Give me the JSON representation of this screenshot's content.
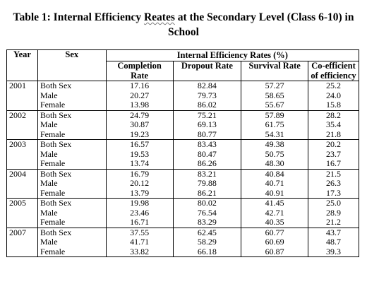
{
  "title": {
    "line1_pre": "Table 1: Internal Efficiency ",
    "line1_squiggle": "Reates",
    "line1_post": " at the Secondary Level (Class 6-10) in",
    "line2": "School"
  },
  "headers": {
    "year": "Year",
    "sex": "Sex",
    "group": "Internal Efficiency Rates (%)",
    "completion": "Completion Rate",
    "dropout": "Dropout Rate",
    "survival": "Survival Rate",
    "coefficient": "Co-efficient of efficiency"
  },
  "rows": [
    {
      "year": "2001",
      "entries": [
        {
          "sex": "Both Sex",
          "completion": "17.16",
          "dropout": "82.84",
          "survival": "57.27",
          "coefficient": "25.2"
        },
        {
          "sex": "Male",
          "completion": "20.27",
          "dropout": "79.73",
          "survival": "58.65",
          "coefficient": "24.0"
        },
        {
          "sex": "Female",
          "completion": "13.98",
          "dropout": "86.02",
          "survival": "55.67",
          "coefficient": "15.8"
        }
      ]
    },
    {
      "year": "2002",
      "entries": [
        {
          "sex": "Both Sex",
          "completion": "24.79",
          "dropout": "75.21",
          "survival": "57.89",
          "coefficient": "28.2"
        },
        {
          "sex": "Male",
          "completion": "30.87",
          "dropout": "69.13",
          "survival": "61.75",
          "coefficient": "35.4"
        },
        {
          "sex": "Female",
          "completion": "19.23",
          "dropout": "80.77",
          "survival": "54.31",
          "coefficient": "21.8"
        }
      ]
    },
    {
      "year": "2003",
      "entries": [
        {
          "sex": "Both Sex",
          "completion": "16.57",
          "dropout": "83.43",
          "survival": "49.38",
          "coefficient": "20.2"
        },
        {
          "sex": "Male",
          "completion": "19.53",
          "dropout": "80.47",
          "survival": "50.75",
          "coefficient": "23.7"
        },
        {
          "sex": "Female",
          "completion": "13.74",
          "dropout": "86.26",
          "survival": "48.30",
          "coefficient": "16.7"
        }
      ]
    },
    {
      "year": "2004",
      "entries": [
        {
          "sex": "Both Sex",
          "completion": "16.79",
          "dropout": "83.21",
          "survival": "40.84",
          "coefficient": "21.5"
        },
        {
          "sex": "Male",
          "completion": "20.12",
          "dropout": "79.88",
          "survival": "40.71",
          "coefficient": "26.3"
        },
        {
          "sex": "Female",
          "completion": "13.79",
          "dropout": "86.21",
          "survival": "40.91",
          "coefficient": "17.3"
        }
      ]
    },
    {
      "year": "2005",
      "entries": [
        {
          "sex": "Both Sex",
          "completion": "19.98",
          "dropout": "80.02",
          "survival": "41.45",
          "coefficient": "25.0"
        },
        {
          "sex": "Male",
          "completion": "23.46",
          "dropout": "76.54",
          "survival": "42.71",
          "coefficient": "28.9"
        },
        {
          "sex": "Female",
          "completion": "16.71",
          "dropout": "83.29",
          "survival": "40.35",
          "coefficient": "21.2"
        }
      ]
    },
    {
      "year": "2007",
      "entries": [
        {
          "sex": "Both Sex",
          "completion": "37.55",
          "dropout": "62.45",
          "survival": "60.77",
          "coefficient": "43.7"
        },
        {
          "sex": "Male",
          "completion": "41.71",
          "dropout": "58.29",
          "survival": "60.69",
          "coefficient": "48.7"
        },
        {
          "sex": "Female",
          "completion": "33.82",
          "dropout": "66.18",
          "survival": "60.87",
          "coefficient": "39.3"
        }
      ]
    }
  ]
}
